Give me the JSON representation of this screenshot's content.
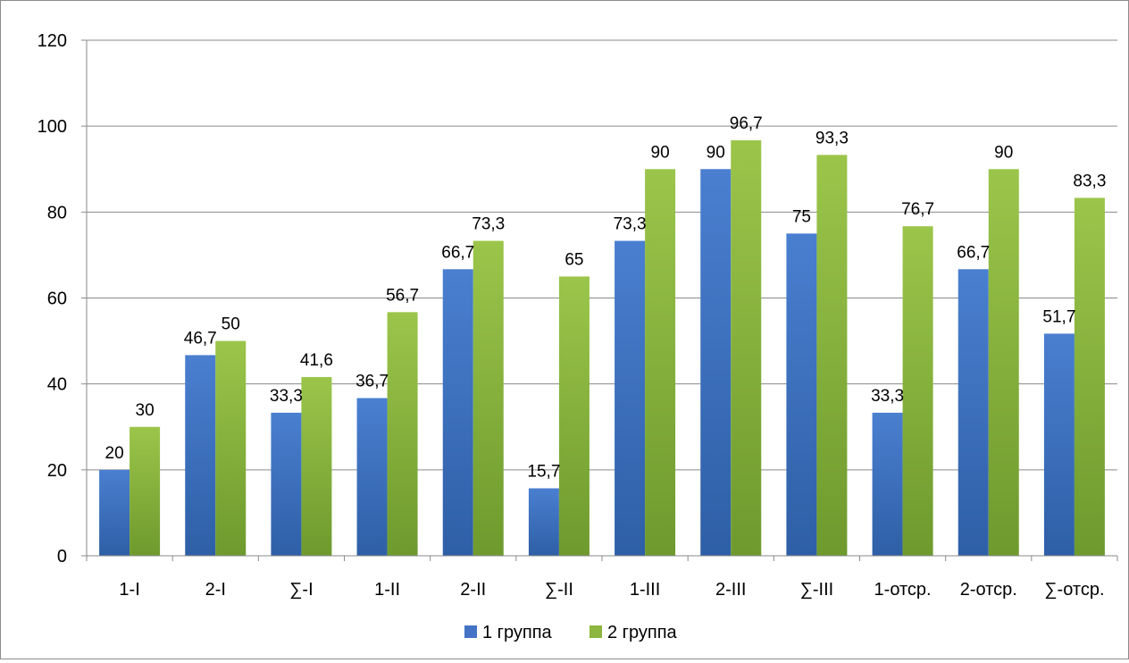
{
  "chart_data": {
    "type": "bar",
    "title": "",
    "xlabel": "",
    "ylabel": "",
    "categories": [
      "1-I",
      "2-I",
      "∑-I",
      "1-II",
      "2-II",
      "∑-II",
      "1-III",
      "2-III",
      "∑-III",
      "1-отср.",
      "2-отср.",
      "∑-отср."
    ],
    "series": [
      {
        "name": "1 группа",
        "color": "#4472C4",
        "values": [
          20,
          46.7,
          33.3,
          36.7,
          66.7,
          15.7,
          73.3,
          90,
          75,
          33.3,
          66.7,
          51.7
        ],
        "labels": [
          "20",
          "46,7",
          "33,3",
          "36,7",
          "66,7",
          "15,7",
          "73,3",
          "90",
          "75",
          "33,3",
          "66,7",
          "51,7"
        ]
      },
      {
        "name": "2 группа",
        "color": "#8DB63F",
        "values": [
          30,
          50,
          41.6,
          56.7,
          73.3,
          65,
          90,
          96.7,
          93.3,
          76.7,
          90,
          83.3
        ],
        "labels": [
          "30",
          "50",
          "41,6",
          "56,7",
          "73,3",
          "65",
          "90",
          "96,7",
          "93,3",
          "76,7",
          "90",
          "83,3"
        ]
      }
    ],
    "ylim": [
      0,
      120
    ],
    "yticks": [
      0,
      20,
      40,
      60,
      80,
      100,
      120
    ],
    "ytick_labels": [
      "0",
      "20",
      "40",
      "60",
      "80",
      "100",
      "120"
    ],
    "grid": true,
    "legend_position": "bottom"
  }
}
